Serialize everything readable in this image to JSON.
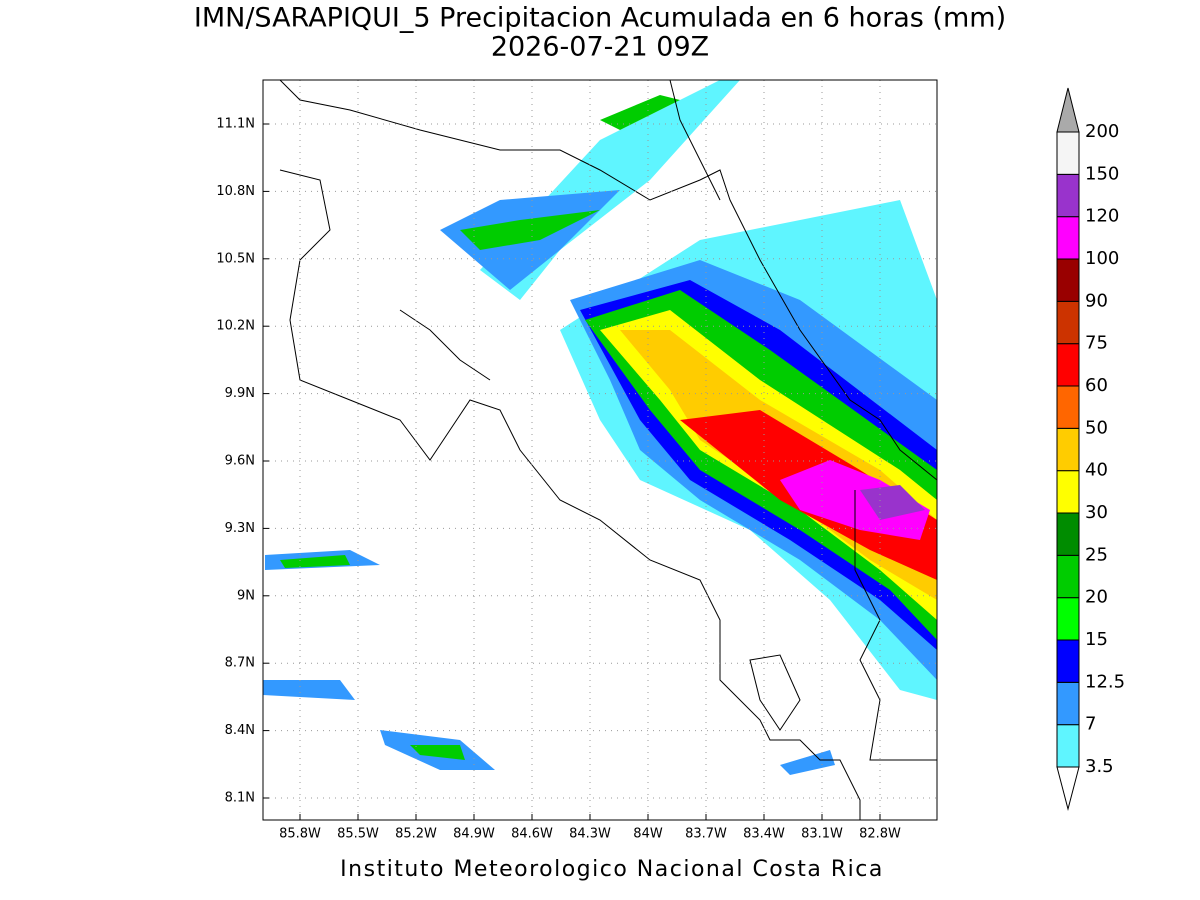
{
  "title": "IMN/SARAPIQUI_5 Precipitacion Acumulada en 6 horas (mm)",
  "subtitle": "2026-07-21 09Z",
  "x_labels": [
    "85.8W",
    "85.5W",
    "85.2W",
    "84.9W",
    "84.6W",
    "84.3W",
    "84W",
    "83.7W",
    "83.4W",
    "83.1W",
    "82.8W"
  ],
  "y_labels": [
    "11.1N",
    "10.8N",
    "10.5N",
    "10.2N",
    "9.9N",
    "9.6N",
    "9.3N",
    "9N",
    "8.7N",
    "8.4N",
    "8.1N"
  ],
  "colorbar": {
    "levels": [
      3.5,
      7,
      12.5,
      15,
      20,
      25,
      30,
      40,
      50,
      60,
      75,
      90,
      100,
      120,
      150,
      200
    ],
    "colors": [
      "#5ff5ff",
      "#3399ff",
      "#0000ff",
      "#00ff00",
      "#00cc00",
      "#008c00",
      "#ffff00",
      "#ffcc00",
      "#ff6600",
      "#ff0000",
      "#cc3300",
      "#990000",
      "#ff00ff",
      "#9933cc",
      "#f5f5f5"
    ],
    "over_color": "#aaaaaa",
    "under_color": "#ffffff"
  },
  "footer": "Instituto Meteorologico Nacional Costa Rica"
}
